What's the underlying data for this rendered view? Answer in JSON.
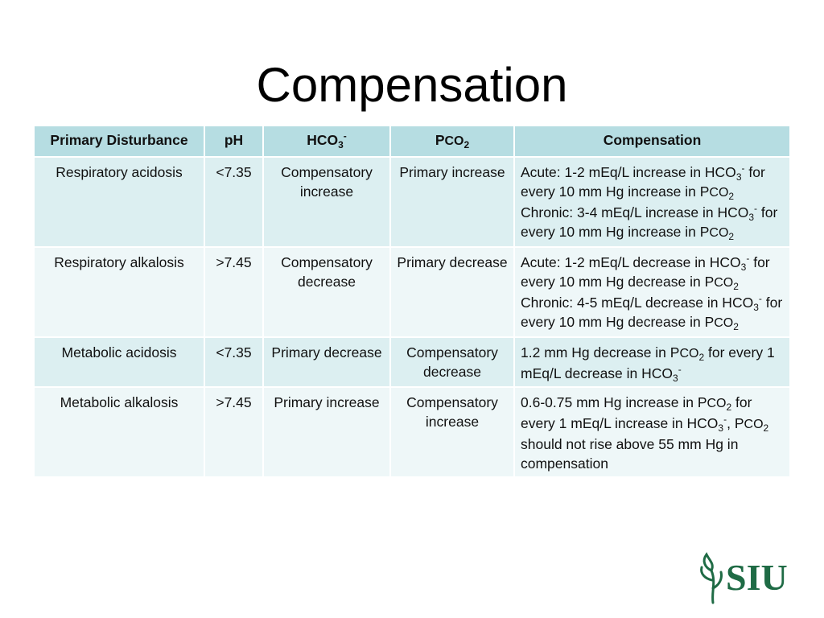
{
  "title": "Compensation",
  "table": {
    "headers": {
      "disturbance": "Primary Disturbance",
      "ph": "pH",
      "hco3": "HCO",
      "hco3_sub": "3",
      "hco3_sup": "-",
      "pco2_p": "P",
      "pco2_co": "CO",
      "pco2_sub": "2",
      "compensation": "Compensation"
    },
    "rows": [
      {
        "disturbance": "Respiratory acidosis",
        "ph": "<7.35",
        "hco3": "Compensatory increase",
        "pco2": "Primary increase",
        "compensation": [
          {
            "t": "Acute: 1-2 mEq/L increase  in HCO"
          },
          {
            "sub": "3"
          },
          {
            "sup": "-"
          },
          {
            "t": " for every 10 mm Hg increase in P"
          },
          {
            "cap": "CO"
          },
          {
            "sub": "2"
          },
          {
            "br": true
          },
          {
            "t": "Chronic: 3-4 mEq/L increase in HCO"
          },
          {
            "sub": "3"
          },
          {
            "sup": "-"
          },
          {
            "t": " for every 10 mm Hg increase in P"
          },
          {
            "cap": "CO"
          },
          {
            "sub": "2"
          }
        ]
      },
      {
        "disturbance": "Respiratory alkalosis",
        "ph": ">7.45",
        "hco3": "Compensatory decrease",
        "pco2": "Primary decrease",
        "compensation": [
          {
            "t": "Acute: 1-2 mEq/L decrease in HCO"
          },
          {
            "sub": "3"
          },
          {
            "sup": "-"
          },
          {
            "t": " for every 10 mm Hg decrease in P"
          },
          {
            "cap": "CO"
          },
          {
            "sub": "2"
          },
          {
            "br": true
          },
          {
            "t": "Chronic: 4-5 mEq/L decrease in HCO"
          },
          {
            "sub": "3"
          },
          {
            "sup": "-"
          },
          {
            "t": " for every 10 mm Hg decrease in P"
          },
          {
            "cap": "CO"
          },
          {
            "sub": "2"
          }
        ]
      },
      {
        "disturbance": "Metabolic acidosis",
        "ph": "<7.35",
        "hco3": "Primary decrease",
        "pco2": "Compensatory decrease",
        "compensation": [
          {
            "t": "1.2 mm Hg decrease in P"
          },
          {
            "cap": "CO"
          },
          {
            "sub": "2"
          },
          {
            "t": " for every 1 mEq/L decrease in HCO"
          },
          {
            "sub": "3"
          },
          {
            "sup": "-"
          }
        ]
      },
      {
        "disturbance": "Metabolic alkalosis",
        "ph": ">7.45",
        "hco3": "Primary increase",
        "pco2": "Compensatory increase",
        "compensation": [
          {
            "t": "0.6-0.75 mm Hg increase in P"
          },
          {
            "cap": "CO"
          },
          {
            "sub": "2"
          },
          {
            "t": " for every 1 mEq/L increase in HCO"
          },
          {
            "sub": "3"
          },
          {
            "sup": "-"
          },
          {
            "t": ", P"
          },
          {
            "cap": "CO"
          },
          {
            "sub": "2"
          },
          {
            "t": " should not rise above 55 mm Hg in compensation"
          }
        ]
      }
    ]
  },
  "logo": {
    "text": "SIU",
    "color": "#1f6b45"
  },
  "colors": {
    "header_bg": "#b6dde2",
    "row_bg_a": "#dceff1",
    "row_bg_b": "#eef7f8"
  }
}
